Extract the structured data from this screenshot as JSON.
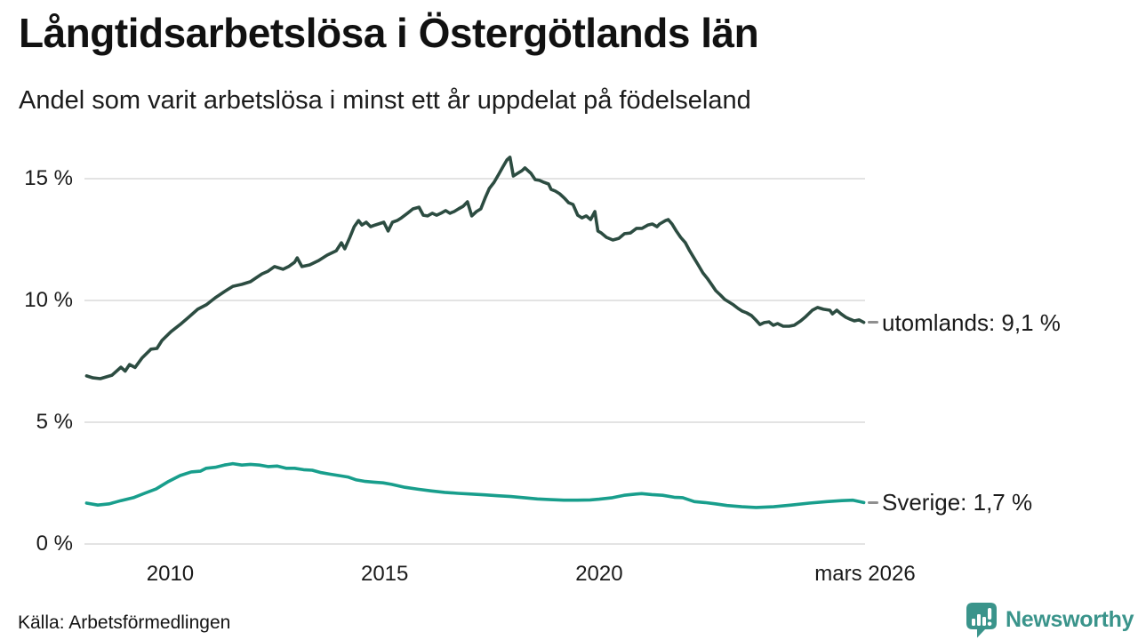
{
  "header": {
    "title": "Långtidsarbetslösa i Östergötlands län",
    "subtitle": "Andel som varit arbetslösa i minst ett år uppdelat på födelseland"
  },
  "footer": {
    "source": "Källa: Arbetsförmedlingen"
  },
  "branding": {
    "name": "Newsworthy",
    "color": "#3a948b",
    "icon": "newsworthy-chart-bubble-icon"
  },
  "colors": {
    "utomlands_line": "#2c4c41",
    "sverige_line": "#189e8c",
    "grid": "#e3e3e3",
    "text": "#1a1a1a",
    "annotation_dash": "#8f8f8f",
    "brand": "#3a948b"
  },
  "chart_data": {
    "type": "line",
    "title": "Långtidsarbetslösa i Östergötlands län",
    "subtitle": "Andel som varit arbetslösa i minst ett år uppdelat på födelseland",
    "unit": "%",
    "grid": true,
    "legend_position": "right-end-labels",
    "x_axis": {
      "range": [
        2008.0,
        2026.2
      ],
      "ticks": [
        {
          "label": "2010",
          "year": 2010
        },
        {
          "label": "2015",
          "year": 2015
        },
        {
          "label": "2020",
          "year": 2020
        },
        {
          "label": "mars 2026",
          "year": 2026.2
        }
      ]
    },
    "y_axis": {
      "range": [
        0,
        16.3
      ],
      "unit": "%",
      "ticks": [
        {
          "label": "15 %",
          "value": 15
        },
        {
          "label": "10 %",
          "value": 10
        },
        {
          "label": "5 %",
          "value": 5
        },
        {
          "label": "0 %",
          "value": 0
        }
      ]
    },
    "series": [
      {
        "name": "utomlands",
        "label": "utomlands: 9,1 %",
        "last_value_text": "9,1 %",
        "color": "#2c4c41",
        "points": [
          [
            2008.05,
            6.9
          ],
          [
            2008.2,
            6.82
          ],
          [
            2008.37,
            6.79
          ],
          [
            2008.64,
            6.93
          ],
          [
            2008.85,
            7.26
          ],
          [
            2008.95,
            7.1
          ],
          [
            2009.05,
            7.37
          ],
          [
            2009.18,
            7.25
          ],
          [
            2009.34,
            7.63
          ],
          [
            2009.55,
            8.0
          ],
          [
            2009.69,
            8.03
          ],
          [
            2009.81,
            8.36
          ],
          [
            2010.02,
            8.72
          ],
          [
            2010.23,
            9.01
          ],
          [
            2010.43,
            9.31
          ],
          [
            2010.64,
            9.64
          ],
          [
            2010.84,
            9.82
          ],
          [
            2011.05,
            10.11
          ],
          [
            2011.26,
            10.36
          ],
          [
            2011.46,
            10.58
          ],
          [
            2011.67,
            10.66
          ],
          [
            2011.87,
            10.77
          ],
          [
            2012.02,
            10.95
          ],
          [
            2012.14,
            11.09
          ],
          [
            2012.28,
            11.2
          ],
          [
            2012.43,
            11.39
          ],
          [
            2012.63,
            11.28
          ],
          [
            2012.76,
            11.39
          ],
          [
            2012.9,
            11.57
          ],
          [
            2012.96,
            11.75
          ],
          [
            2013.07,
            11.39
          ],
          [
            2013.25,
            11.46
          ],
          [
            2013.46,
            11.64
          ],
          [
            2013.66,
            11.86
          ],
          [
            2013.87,
            12.04
          ],
          [
            2013.99,
            12.37
          ],
          [
            2014.07,
            12.12
          ],
          [
            2014.19,
            12.6
          ],
          [
            2014.29,
            13.03
          ],
          [
            2014.39,
            13.28
          ],
          [
            2014.47,
            13.1
          ],
          [
            2014.57,
            13.21
          ],
          [
            2014.67,
            13.03
          ],
          [
            2014.78,
            13.1
          ],
          [
            2014.98,
            13.21
          ],
          [
            2015.08,
            12.85
          ],
          [
            2015.18,
            13.21
          ],
          [
            2015.29,
            13.28
          ],
          [
            2015.39,
            13.39
          ],
          [
            2015.53,
            13.58
          ],
          [
            2015.66,
            13.76
          ],
          [
            2015.8,
            13.83
          ],
          [
            2015.9,
            13.5
          ],
          [
            2016.0,
            13.47
          ],
          [
            2016.11,
            13.58
          ],
          [
            2016.21,
            13.5
          ],
          [
            2016.31,
            13.58
          ],
          [
            2016.42,
            13.69
          ],
          [
            2016.52,
            13.58
          ],
          [
            2016.62,
            13.65
          ],
          [
            2016.72,
            13.76
          ],
          [
            2016.83,
            13.87
          ],
          [
            2016.93,
            14.05
          ],
          [
            2017.03,
            13.47
          ],
          [
            2017.14,
            13.65
          ],
          [
            2017.24,
            13.76
          ],
          [
            2017.34,
            14.2
          ],
          [
            2017.44,
            14.6
          ],
          [
            2017.55,
            14.85
          ],
          [
            2017.65,
            15.15
          ],
          [
            2017.75,
            15.47
          ],
          [
            2017.85,
            15.77
          ],
          [
            2017.92,
            15.88
          ],
          [
            2018.0,
            15.11
          ],
          [
            2018.1,
            15.22
          ],
          [
            2018.2,
            15.33
          ],
          [
            2018.27,
            15.44
          ],
          [
            2018.41,
            15.22
          ],
          [
            2018.51,
            14.96
          ],
          [
            2018.61,
            14.93
          ],
          [
            2018.71,
            14.85
          ],
          [
            2018.82,
            14.78
          ],
          [
            2018.88,
            14.56
          ],
          [
            2018.98,
            14.49
          ],
          [
            2019.08,
            14.38
          ],
          [
            2019.19,
            14.2
          ],
          [
            2019.29,
            14.01
          ],
          [
            2019.39,
            13.94
          ],
          [
            2019.5,
            13.5
          ],
          [
            2019.6,
            13.39
          ],
          [
            2019.7,
            13.47
          ],
          [
            2019.8,
            13.32
          ],
          [
            2019.9,
            13.65
          ],
          [
            2019.97,
            12.85
          ],
          [
            2020.05,
            12.77
          ],
          [
            2020.17,
            12.59
          ],
          [
            2020.32,
            12.48
          ],
          [
            2020.46,
            12.55
          ],
          [
            2020.59,
            12.74
          ],
          [
            2020.73,
            12.77
          ],
          [
            2020.87,
            12.96
          ],
          [
            2021.0,
            12.96
          ],
          [
            2021.14,
            13.1
          ],
          [
            2021.24,
            13.14
          ],
          [
            2021.35,
            13.03
          ],
          [
            2021.41,
            13.14
          ],
          [
            2021.55,
            13.28
          ],
          [
            2021.61,
            13.32
          ],
          [
            2021.7,
            13.14
          ],
          [
            2021.8,
            12.85
          ],
          [
            2021.9,
            12.59
          ],
          [
            2022.01,
            12.37
          ],
          [
            2022.11,
            12.04
          ],
          [
            2022.21,
            11.75
          ],
          [
            2022.31,
            11.46
          ],
          [
            2022.42,
            11.13
          ],
          [
            2022.52,
            10.91
          ],
          [
            2022.62,
            10.66
          ],
          [
            2022.72,
            10.4
          ],
          [
            2022.83,
            10.22
          ],
          [
            2022.93,
            10.04
          ],
          [
            2023.03,
            9.93
          ],
          [
            2023.13,
            9.82
          ],
          [
            2023.24,
            9.67
          ],
          [
            2023.34,
            9.56
          ],
          [
            2023.44,
            9.49
          ],
          [
            2023.55,
            9.38
          ],
          [
            2023.65,
            9.2
          ],
          [
            2023.75,
            9.01
          ],
          [
            2023.85,
            9.09
          ],
          [
            2023.96,
            9.12
          ],
          [
            2024.06,
            8.98
          ],
          [
            2024.16,
            9.05
          ],
          [
            2024.29,
            8.94
          ],
          [
            2024.43,
            8.94
          ],
          [
            2024.55,
            8.98
          ],
          [
            2024.7,
            9.16
          ],
          [
            2024.82,
            9.34
          ],
          [
            2024.97,
            9.6
          ],
          [
            2025.09,
            9.71
          ],
          [
            2025.23,
            9.64
          ],
          [
            2025.38,
            9.6
          ],
          [
            2025.44,
            9.45
          ],
          [
            2025.54,
            9.6
          ],
          [
            2025.64,
            9.45
          ],
          [
            2025.75,
            9.31
          ],
          [
            2025.85,
            9.23
          ],
          [
            2025.95,
            9.16
          ],
          [
            2026.06,
            9.2
          ],
          [
            2026.17,
            9.1
          ]
        ]
      },
      {
        "name": "sverige",
        "label": "Sverige: 1,7 %",
        "last_value_text": "1,7 %",
        "color": "#189e8c",
        "points": [
          [
            2008.05,
            1.68
          ],
          [
            2008.31,
            1.6
          ],
          [
            2008.58,
            1.65
          ],
          [
            2008.85,
            1.78
          ],
          [
            2009.14,
            1.9
          ],
          [
            2009.4,
            2.08
          ],
          [
            2009.67,
            2.26
          ],
          [
            2009.96,
            2.57
          ],
          [
            2010.23,
            2.81
          ],
          [
            2010.49,
            2.96
          ],
          [
            2010.7,
            2.99
          ],
          [
            2010.84,
            3.11
          ],
          [
            2011.05,
            3.15
          ],
          [
            2011.26,
            3.24
          ],
          [
            2011.46,
            3.3
          ],
          [
            2011.67,
            3.24
          ],
          [
            2011.87,
            3.27
          ],
          [
            2012.08,
            3.24
          ],
          [
            2012.28,
            3.18
          ],
          [
            2012.49,
            3.2
          ],
          [
            2012.7,
            3.11
          ],
          [
            2012.9,
            3.11
          ],
          [
            2013.11,
            3.05
          ],
          [
            2013.31,
            3.03
          ],
          [
            2013.52,
            2.93
          ],
          [
            2013.72,
            2.87
          ],
          [
            2013.93,
            2.81
          ],
          [
            2014.14,
            2.75
          ],
          [
            2014.34,
            2.63
          ],
          [
            2014.55,
            2.57
          ],
          [
            2014.75,
            2.54
          ],
          [
            2014.96,
            2.51
          ],
          [
            2015.16,
            2.45
          ],
          [
            2015.47,
            2.33
          ],
          [
            2015.78,
            2.25
          ],
          [
            2016.09,
            2.18
          ],
          [
            2016.4,
            2.12
          ],
          [
            2016.71,
            2.08
          ],
          [
            2017.02,
            2.05
          ],
          [
            2017.33,
            2.02
          ],
          [
            2017.63,
            1.98
          ],
          [
            2017.94,
            1.95
          ],
          [
            2018.25,
            1.9
          ],
          [
            2018.56,
            1.85
          ],
          [
            2018.87,
            1.82
          ],
          [
            2019.18,
            1.8
          ],
          [
            2019.49,
            1.8
          ],
          [
            2019.79,
            1.81
          ],
          [
            2020.0,
            1.84
          ],
          [
            2020.31,
            1.9
          ],
          [
            2020.58,
            2.0
          ],
          [
            2020.86,
            2.05
          ],
          [
            2020.99,
            2.07
          ],
          [
            2021.23,
            2.03
          ],
          [
            2021.48,
            2.0
          ],
          [
            2021.75,
            1.92
          ],
          [
            2021.95,
            1.9
          ],
          [
            2022.22,
            1.74
          ],
          [
            2022.47,
            1.7
          ],
          [
            2022.71,
            1.65
          ],
          [
            2022.98,
            1.58
          ],
          [
            2023.33,
            1.53
          ],
          [
            2023.66,
            1.5
          ],
          [
            2024.07,
            1.53
          ],
          [
            2024.48,
            1.6
          ],
          [
            2024.9,
            1.68
          ],
          [
            2025.31,
            1.74
          ],
          [
            2025.66,
            1.78
          ],
          [
            2025.92,
            1.8
          ],
          [
            2026.17,
            1.7
          ]
        ]
      }
    ]
  }
}
